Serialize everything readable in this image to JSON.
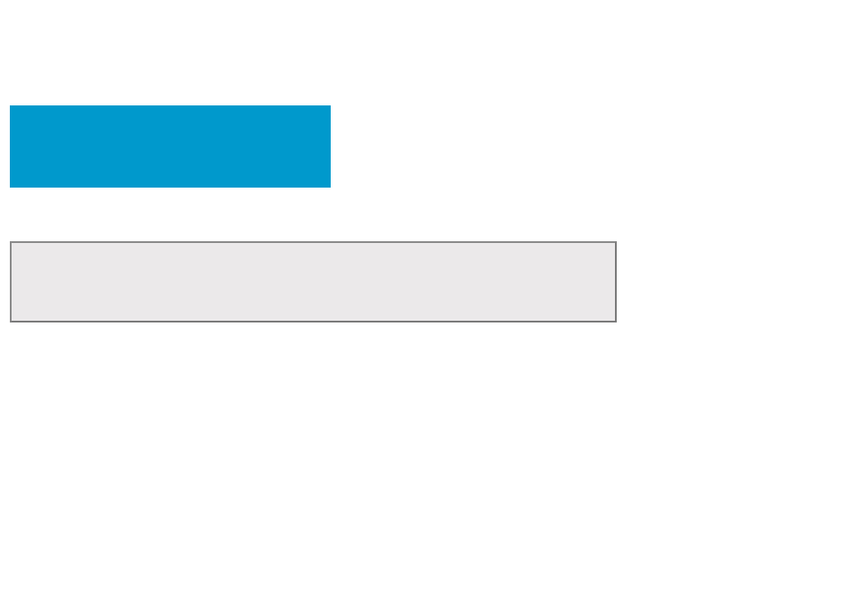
{
  "blue_block": {
    "label": "",
    "color": "#0099cc"
  },
  "gray_field": {
    "value": "",
    "placeholder": "",
    "background": "#ebe9ea",
    "border_color": "#8a8a8a"
  }
}
